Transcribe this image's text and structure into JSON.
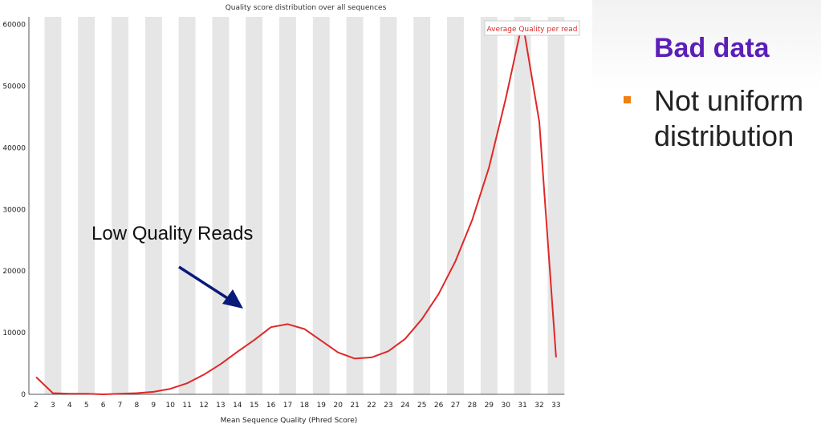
{
  "slide": {
    "heading": "Bad data",
    "heading_color": "#5b1fb8",
    "bullet": {
      "text": "Not uniform distribution",
      "marker_color": "#f08010"
    }
  },
  "annotation": {
    "text": "Low Quality Reads",
    "arrow_color": "#0a1a7a"
  },
  "colors": {
    "line": "#e02828",
    "band": "#e6e6e6",
    "axis": "#555555"
  },
  "chart_data": {
    "type": "line",
    "title": "Quality score distribution over all sequences",
    "xlabel": "Mean Sequence Quality (Phred Score)",
    "ylabel": "",
    "ylim": [
      0,
      61000
    ],
    "y_ticks": [
      0,
      10000,
      20000,
      30000,
      40000,
      50000,
      60000
    ],
    "x_ticks": [
      2,
      3,
      4,
      5,
      6,
      7,
      8,
      9,
      10,
      11,
      12,
      13,
      14,
      15,
      16,
      17,
      18,
      19,
      20,
      21,
      22,
      23,
      24,
      25,
      26,
      27,
      28,
      29,
      30,
      31,
      32,
      33
    ],
    "grid": "alternating vertical bands",
    "legend_position": "top-right",
    "series": [
      {
        "name": "Average Quality per read",
        "x": [
          2,
          3,
          4,
          5,
          6,
          7,
          8,
          9,
          10,
          11,
          12,
          13,
          14,
          15,
          16,
          17,
          18,
          19,
          20,
          21,
          22,
          23,
          24,
          25,
          26,
          27,
          28,
          29,
          30,
          31,
          32,
          33
        ],
        "values": [
          2800,
          200,
          100,
          100,
          0,
          100,
          200,
          400,
          900,
          1800,
          3200,
          4900,
          6900,
          8800,
          10900,
          11400,
          10600,
          8700,
          6800,
          5800,
          6000,
          7000,
          9000,
          12200,
          16300,
          21600,
          28300,
          36800,
          48000,
          60500,
          44200,
          6000
        ]
      }
    ]
  }
}
